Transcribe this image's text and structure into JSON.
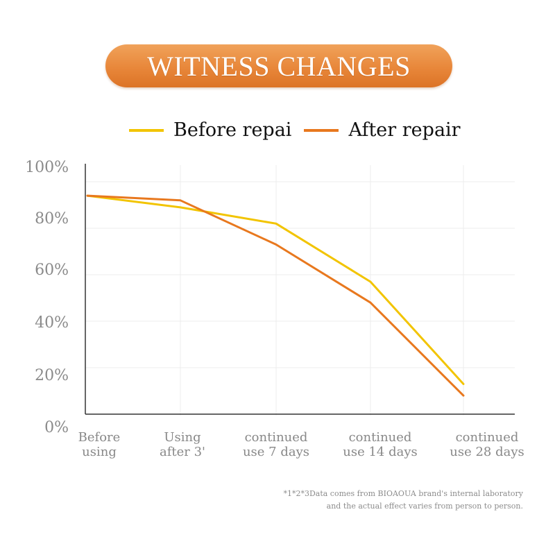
{
  "title": "WITNESS CHANGES",
  "colors": {
    "before": "#f2c400",
    "after": "#e8781e",
    "title_bg": "#e8873a"
  },
  "footnote": {
    "line1": "*1*2*3Data comes from BIOAOUA brand's internal laboratory",
    "line2": "and the actual effect varies from person to person."
  },
  "chart_data": {
    "type": "line",
    "title": "WITNESS CHANGES",
    "categories": [
      [
        "Before",
        "using"
      ],
      [
        "Using",
        "after 3'"
      ],
      [
        "continued",
        "use 7 days"
      ],
      [
        "continued",
        "use 14 days"
      ],
      [
        "continued",
        "use 28 days"
      ]
    ],
    "y_ticks": [
      "0%",
      "20%",
      "40%",
      "60%",
      "80%",
      "100%"
    ],
    "ylim": [
      0,
      100
    ],
    "grid": true,
    "legend_position": "top-center",
    "series": [
      {
        "name": "Before repai",
        "color": "#f2c400",
        "values": [
          94,
          89,
          82,
          57,
          13
        ]
      },
      {
        "name": "After repair",
        "color": "#e8781e",
        "values": [
          94,
          92,
          73,
          48,
          8
        ]
      }
    ]
  }
}
